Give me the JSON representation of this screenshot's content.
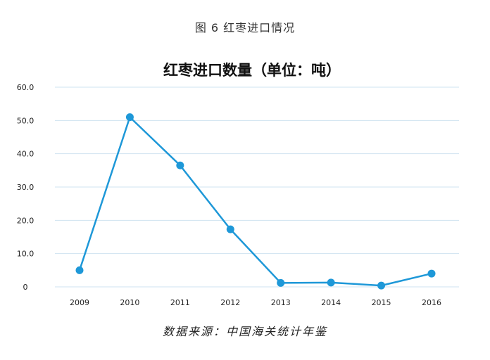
{
  "figure_caption": "图 6   红枣进口情况",
  "source_note": "数据来源：中国海关统计年鉴",
  "colors": {
    "line": "#1e98d8",
    "grid": "#cfe3f1",
    "tick": "#222222",
    "title": "#111111"
  },
  "chart_data": {
    "type": "line",
    "title": "红枣进口数量（单位：吨）",
    "xlabel": "",
    "ylabel": "",
    "categories": [
      "2009",
      "2010",
      "2011",
      "2012",
      "2013",
      "2014",
      "2015",
      "2016"
    ],
    "series": [
      {
        "values": [
          5.0,
          51.0,
          36.5,
          17.3,
          1.2,
          1.3,
          0.4,
          4.0
        ]
      }
    ],
    "ylim": [
      0,
      60
    ],
    "yticks": [
      0,
      10,
      20,
      30,
      40,
      50,
      60
    ],
    "ytick_labels": [
      "0",
      "10.0",
      "20.0",
      "30.0",
      "40.0",
      "50.0",
      "60.0"
    ],
    "grid": true,
    "legend": "none"
  }
}
